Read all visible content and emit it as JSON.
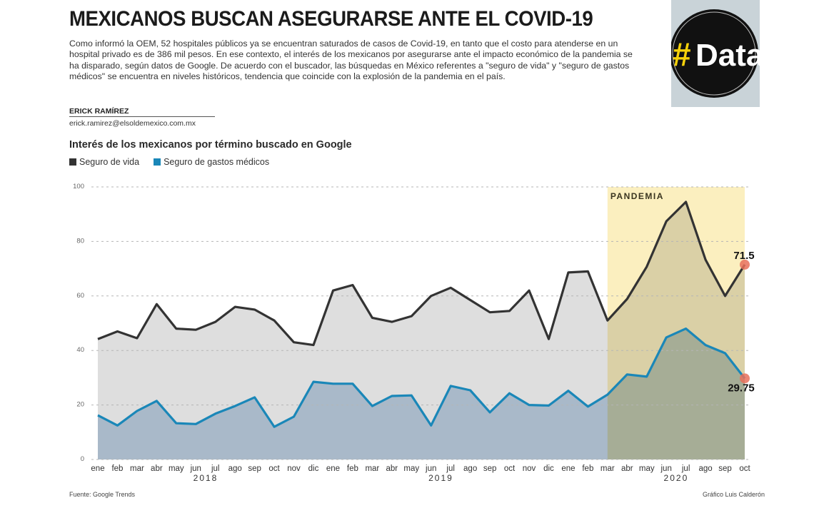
{
  "header": {
    "title": "MEXICANOS BUSCAN ASEGURARSE ANTE EL COVID-19",
    "intro": "Como informó la OEM, 52 hospitales públicos ya se encuentran saturados de casos de Covid-19, en tanto que el costo para atenderse en un hospital privado es de 386 mil pesos. En ese contexto, el interés de los mexicanos por asegurarse ante el impacto económico de la pandemia se ha disparado, según datos de Google. De acuerdo con el buscador, las búsquedas en México referentes a \"seguro de vida\" y \"seguro de gastos médicos\" se encuentra en niveles históricos, tendencia que coincide con la explosión de la pandemia en el país.",
    "author": "ERICK RAMÍREZ",
    "email": "erick.ramirez@elsoldemexico.com.mx"
  },
  "logo": {
    "hash": "#",
    "text": "Data",
    "hash_color": "#f5d10a"
  },
  "footer": {
    "source": "Fuente: Google Trends",
    "credit": "Gráfico Luis Calderón"
  },
  "chart_data": {
    "type": "area",
    "title": "Interés de los mexicanos por término buscado en Google",
    "xlabel": "",
    "ylabel": "",
    "ylim": [
      0,
      100
    ],
    "yticks": [
      "0",
      "20",
      "40",
      "60",
      "80",
      "100"
    ],
    "ytick_values": [
      0,
      20,
      40,
      60,
      80,
      100
    ],
    "grid": true,
    "legend_placement": "top-left",
    "x": [
      "ene",
      "feb",
      "mar",
      "abr",
      "may",
      "jun",
      "jul",
      "ago",
      "sep",
      "oct",
      "nov",
      "dic",
      "ene",
      "feb",
      "mar",
      "abr",
      "may",
      "jun",
      "jul",
      "ago",
      "sep",
      "oct",
      "nov",
      "dic",
      "ene",
      "feb",
      "mar",
      "abr",
      "may",
      "jun",
      "jul",
      "ago",
      "sep",
      "oct"
    ],
    "years": [
      {
        "label": "2018",
        "center_index": 5.5
      },
      {
        "label": "2019",
        "center_index": 17.5
      },
      {
        "label": "2020",
        "center_index": 29.5
      }
    ],
    "series": [
      {
        "name": "Seguro de vida",
        "color": "#333333",
        "fill": "#dedede",
        "values": [
          44.2,
          47,
          44.5,
          57,
          48,
          47.6,
          50.5,
          56,
          55,
          51,
          43,
          42,
          62,
          64,
          52,
          50.5,
          52.6,
          60,
          63,
          58.5,
          54,
          54.5,
          62,
          44.2,
          68.6,
          69,
          51,
          58.9,
          70.7,
          87.4,
          94.5,
          73.3,
          60,
          71.5
        ]
      },
      {
        "name": "Seguro de gastos médicos",
        "color": "#1a87b8",
        "fill": "#a9b9c9",
        "values": [
          16.2,
          12.5,
          17.8,
          21.5,
          13.3,
          13,
          16.8,
          19.6,
          22.8,
          12,
          15.7,
          28.5,
          27.8,
          27.8,
          19.6,
          23.3,
          23.5,
          12.5,
          27,
          25.4,
          17.3,
          24.3,
          20,
          19.8,
          25.2,
          19.4,
          23.8,
          31.2,
          30.4,
          44.8,
          48,
          42,
          39,
          29.75
        ]
      }
    ],
    "annotations": [
      {
        "text": "PANDEMIA",
        "type": "shaded-region",
        "from_index": 26,
        "to_index": 33,
        "color": "#f9e597"
      },
      {
        "text": "71.5",
        "series": 0,
        "index": 33,
        "marker_color": "#e8705a"
      },
      {
        "text": "29.75",
        "series": 1,
        "index": 33,
        "marker_color": "#e8705a"
      }
    ]
  }
}
